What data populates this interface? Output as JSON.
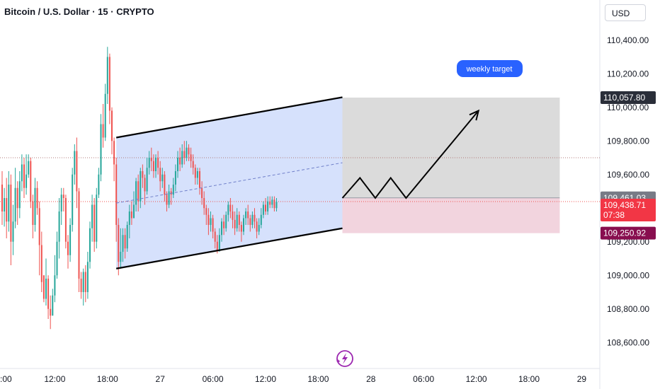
{
  "header": {
    "title": "Bitcoin / U.S. Dollar · 15 · CRYPTO",
    "currency": "USD"
  },
  "colors": {
    "up": "#26a69a",
    "down": "#ef5350",
    "channel_fill": "#cfdcfb",
    "target_zone": "#d9d9d9",
    "stop_zone": "#f1d2dc",
    "target_badge": "#2962ff"
  },
  "chart_data": {
    "type": "candlestick",
    "ylim": [
      108500,
      110500
    ],
    "y_ticks": [
      "110,400.00",
      "110,200.00",
      "110,000.00",
      "109,800.00",
      "109,600.00",
      "109,200.00",
      "109,000.00",
      "108,800.00",
      "108,600.00"
    ],
    "y_tick_values": [
      110400,
      110200,
      110000,
      109800,
      109600,
      109200,
      109000,
      108800,
      108600
    ],
    "x_ticks": [
      ":00",
      "12:00",
      "18:00",
      "27",
      "06:00",
      "12:00",
      "18:00",
      "28",
      "06:00",
      "12:00",
      "18:00",
      "29"
    ],
    "x_tick_bars": [
      0,
      24,
      48,
      72,
      96,
      120,
      144,
      168,
      192,
      216,
      240,
      264
    ],
    "candles": [
      [
        109540,
        109380,
        109620,
        109300
      ],
      [
        109380,
        109460,
        109520,
        109290
      ],
      [
        109460,
        109320,
        109580,
        109220
      ],
      [
        109320,
        109540,
        109620,
        109260
      ],
      [
        109540,
        109200,
        109600,
        109060
      ],
      [
        109200,
        109320,
        109420,
        109120
      ],
      [
        109320,
        109520,
        109640,
        109280
      ],
      [
        109520,
        109400,
        109560,
        109300
      ],
      [
        109400,
        109560,
        109620,
        109340
      ],
      [
        109560,
        109660,
        109720,
        109500
      ],
      [
        109660,
        109520,
        109700,
        109460
      ],
      [
        109520,
        109600,
        109720,
        109480
      ],
      [
        109600,
        109680,
        109720,
        109580
      ],
      [
        109680,
        109440,
        109700,
        109400
      ],
      [
        109440,
        109300,
        109480,
        109220
      ],
      [
        109300,
        109520,
        109580,
        109260
      ],
      [
        109520,
        109400,
        109560,
        109360
      ],
      [
        109400,
        109180,
        109440,
        109000
      ],
      [
        109180,
        108960,
        109260,
        108900
      ],
      [
        109000,
        108860,
        109000,
        108840
      ],
      [
        108860,
        108980,
        109100,
        108820
      ],
      [
        108980,
        108800,
        109000,
        108740
      ],
      [
        108800,
        108760,
        108880,
        108680
      ],
      [
        108760,
        108880,
        108920,
        108760
      ],
      [
        108880,
        109000,
        109120,
        108840
      ],
      [
        109000,
        109200,
        109260,
        108980
      ],
      [
        109200,
        109380,
        109460,
        109100
      ],
      [
        109380,
        109480,
        109520,
        109300
      ],
      [
        109480,
        109460,
        109520,
        109380
      ],
      [
        109460,
        109200,
        109480,
        109160
      ],
      [
        109200,
        109120,
        109240,
        109040
      ],
      [
        109120,
        109300,
        109340,
        109080
      ],
      [
        109300,
        109600,
        109640,
        109260
      ],
      [
        109600,
        109740,
        109780,
        109540
      ],
      [
        109740,
        109500,
        109820,
        109400
      ],
      [
        109500,
        108980,
        109520,
        108900
      ],
      [
        108980,
        108900,
        109020,
        108860
      ],
      [
        108900,
        109020,
        109040,
        108820
      ],
      [
        109020,
        108900,
        109060,
        108840
      ],
      [
        108900,
        109080,
        109140,
        108860
      ],
      [
        109080,
        109280,
        109320,
        109040
      ],
      [
        109280,
        109420,
        109480,
        109200
      ],
      [
        109420,
        109200,
        109460,
        109140
      ],
      [
        109200,
        109480,
        109520,
        109160
      ],
      [
        109480,
        109600,
        109640,
        109460
      ],
      [
        109600,
        109900,
        109960,
        109560
      ],
      [
        109900,
        109820,
        110020,
        109760
      ],
      [
        109820,
        110080,
        110140,
        109800
      ],
      [
        110080,
        110300,
        110360,
        110020
      ],
      [
        110300,
        109980,
        110320,
        109900
      ],
      [
        109980,
        109800,
        110000,
        109720
      ],
      [
        109800,
        109660,
        109820,
        109560
      ],
      [
        109660,
        109300,
        109700,
        109200
      ],
      [
        109300,
        109080,
        109340,
        109000
      ],
      [
        109080,
        109140,
        109280,
        109040
      ],
      [
        109140,
        109240,
        109280,
        109080
      ],
      [
        109240,
        109160,
        109280,
        109100
      ],
      [
        109160,
        109300,
        109320,
        109140
      ],
      [
        109300,
        109380,
        109420,
        109220
      ],
      [
        109380,
        109340,
        109440,
        109300
      ],
      [
        109340,
        109420,
        109500,
        109340
      ],
      [
        109420,
        109560,
        109580,
        109380
      ],
      [
        109560,
        109440,
        109600,
        109380
      ],
      [
        109440,
        109620,
        109640,
        109400
      ],
      [
        109620,
        109580,
        109660,
        109520
      ],
      [
        109580,
        109500,
        109600,
        109420
      ],
      [
        109500,
        109640,
        109700,
        109480
      ],
      [
        109640,
        109700,
        109740,
        109600
      ],
      [
        109700,
        109680,
        109760,
        109620
      ],
      [
        109680,
        109620,
        109720,
        109580
      ],
      [
        109620,
        109700,
        109720,
        109580
      ],
      [
        109700,
        109640,
        109740,
        109600
      ],
      [
        109640,
        109560,
        109680,
        109500
      ],
      [
        109560,
        109600,
        109640,
        109520
      ],
      [
        109600,
        109480,
        109620,
        109440
      ],
      [
        109480,
        109420,
        109500,
        109380
      ],
      [
        109420,
        109500,
        109540,
        109400
      ],
      [
        109500,
        109480,
        109520,
        109420
      ],
      [
        109480,
        109540,
        109580,
        109460
      ],
      [
        109540,
        109620,
        109660,
        109500
      ],
      [
        109620,
        109700,
        109740,
        109580
      ],
      [
        109700,
        109660,
        109760,
        109620
      ],
      [
        109660,
        109740,
        109780,
        109640
      ],
      [
        109740,
        109700,
        109800,
        109660
      ],
      [
        109700,
        109760,
        109800,
        109680
      ],
      [
        109760,
        109720,
        109780,
        109680
      ],
      [
        109720,
        109680,
        109760,
        109640
      ],
      [
        109680,
        109640,
        109720,
        109600
      ],
      [
        109640,
        109580,
        109660,
        109540
      ],
      [
        109580,
        109620,
        109640,
        109540
      ],
      [
        109620,
        109520,
        109640,
        109480
      ],
      [
        109520,
        109460,
        109560,
        109420
      ],
      [
        109460,
        109400,
        109500,
        109360
      ],
      [
        109400,
        109360,
        109420,
        109300
      ],
      [
        109360,
        109300,
        109400,
        109240
      ],
      [
        109300,
        109340,
        109380,
        109260
      ],
      [
        109340,
        109260,
        109360,
        109220
      ],
      [
        109260,
        109200,
        109280,
        109160
      ],
      [
        109200,
        109150,
        109240,
        109130
      ],
      [
        109150,
        109240,
        109280,
        109140
      ],
      [
        109240,
        109320,
        109340,
        109200
      ],
      [
        109320,
        109280,
        109360,
        109240
      ],
      [
        109280,
        109360,
        109380,
        109260
      ],
      [
        109360,
        109420,
        109440,
        109320
      ],
      [
        109420,
        109380,
        109460,
        109340
      ],
      [
        109380,
        109330,
        109420,
        109280
      ],
      [
        109330,
        109280,
        109380,
        109240
      ],
      [
        109280,
        109360,
        109400,
        109260
      ],
      [
        109360,
        109300,
        109380,
        109260
      ],
      [
        109300,
        109260,
        109320,
        109200
      ],
      [
        109260,
        109340,
        109360,
        109240
      ],
      [
        109340,
        109380,
        109400,
        109300
      ],
      [
        109380,
        109340,
        109420,
        109300
      ],
      [
        109340,
        109300,
        109360,
        109260
      ],
      [
        109300,
        109360,
        109380,
        109280
      ],
      [
        109360,
        109320,
        109400,
        109280
      ],
      [
        109320,
        109260,
        109340,
        109220
      ],
      [
        109260,
        109300,
        109340,
        109240
      ],
      [
        109300,
        109360,
        109400,
        109280
      ],
      [
        109360,
        109420,
        109440,
        109340
      ],
      [
        109420,
        109380,
        109460,
        109360
      ],
      [
        109380,
        109440,
        109470,
        109360
      ],
      [
        109440,
        109420,
        109470,
        109400
      ],
      [
        109420,
        109450,
        109470,
        109400
      ],
      [
        109450,
        109400,
        109470,
        109380
      ],
      [
        109400,
        109438,
        109460,
        109380
      ]
    ],
    "channel": {
      "upper": [
        [
          52,
          109820
        ],
        [
          155,
          110060
        ]
      ],
      "lower": [
        [
          52,
          109040
        ],
        [
          155,
          109280
        ]
      ],
      "mid": [
        [
          52,
          109430
        ],
        [
          155,
          109670
        ]
      ]
    },
    "target_zone": {
      "x": [
        155,
        254
      ],
      "y": [
        109461,
        110058
      ]
    },
    "stop_zone": {
      "x": [
        155,
        254
      ],
      "y": [
        109251,
        109461
      ]
    },
    "projection": [
      [
        155,
        109460
      ],
      [
        163,
        109580
      ],
      [
        170,
        109460
      ],
      [
        177,
        109580
      ],
      [
        184,
        109460
      ],
      [
        217,
        109980
      ]
    ],
    "level_line": 109700,
    "current_line": 109438.71,
    "annotation": "weekly target",
    "price_labels": {
      "target": "110,057.80",
      "entry": "109,461.03",
      "last": "109,438.71",
      "countdown": "07:38",
      "stop": "109,250.92"
    }
  }
}
